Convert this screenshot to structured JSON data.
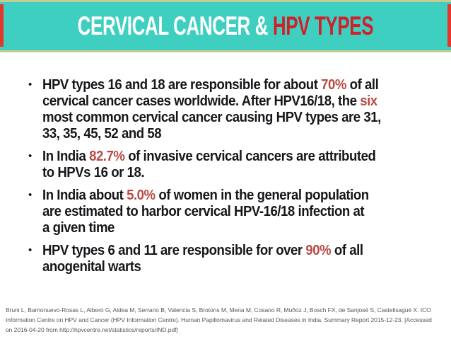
{
  "slide": {
    "title": {
      "part1": "CERVICAL CANCER & ",
      "part2": "HPV TYPES"
    },
    "bullet_char": "•",
    "bullets": [
      {
        "lines": [
          [
            {
              "t": "HPV types 16 and 18 are responsible for about "
            },
            {
              "t": "70%",
              "accent": true
            },
            {
              "t": " of all"
            }
          ],
          [
            {
              "t": "cervical cancer cases worldwide. After HPV16/18, the "
            },
            {
              "t": "six",
              "accent": true
            }
          ],
          [
            {
              "t": "most common cervical cancer causing HPV types are 31,"
            }
          ],
          [
            {
              "t": "33, 35, 45, 52 and 58"
            }
          ]
        ]
      },
      {
        "lines": [
          [
            {
              "t": "In India "
            },
            {
              "t": "82.7%",
              "accent": true
            },
            {
              "t": " of invasive cervical cancers are attributed"
            }
          ],
          [
            {
              "t": "to HPVs 16 or 18."
            }
          ]
        ]
      },
      {
        "lines": [
          [
            {
              "t": "In India about "
            },
            {
              "t": "5.0%",
              "accent": true
            },
            {
              "t": " of women in the general population"
            }
          ],
          [
            {
              "t": "are estimated to harbor cervical HPV-16/18 infection at"
            }
          ],
          [
            {
              "t": "a given time"
            }
          ]
        ]
      },
      {
        "lines": [
          [
            {
              "t": "HPV types 6 and 11 are responsible for over "
            },
            {
              "t": "90%",
              "accent": true
            },
            {
              "t": " of all"
            }
          ],
          [
            {
              "t": "anogenital warts"
            }
          ]
        ]
      }
    ],
    "footer_lines": [
      "Bruni L, Barrionuevo-Rosas L, Albero G, Aldea M, Serrano B, Valencia S, Brotons M, Mena M, Cosano R, Muñoz J, Bosch FX, de Sanjosé S, Castellsagué X. ICO",
      "Information Centre on HPV and Cancer (HPV Information Centre). Human Papillomavirus and Related Diseases in India. Summary Report 2015-12-23. [Accessed",
      "on 2016-04-20 from http://hpvcentre.net/statistics/reports/IND.pdf]"
    ],
    "colors": {
      "banner_teal": "#3FCFC1",
      "banner_border_khaki": "#C6CC95",
      "side_accent_red": "#E1382D",
      "title_highlight_red": "#D0202A",
      "body_accent_red": "#B84B45",
      "body_text": "#17161B",
      "citation_text": "#585858",
      "background": "#FFFFFF"
    }
  }
}
